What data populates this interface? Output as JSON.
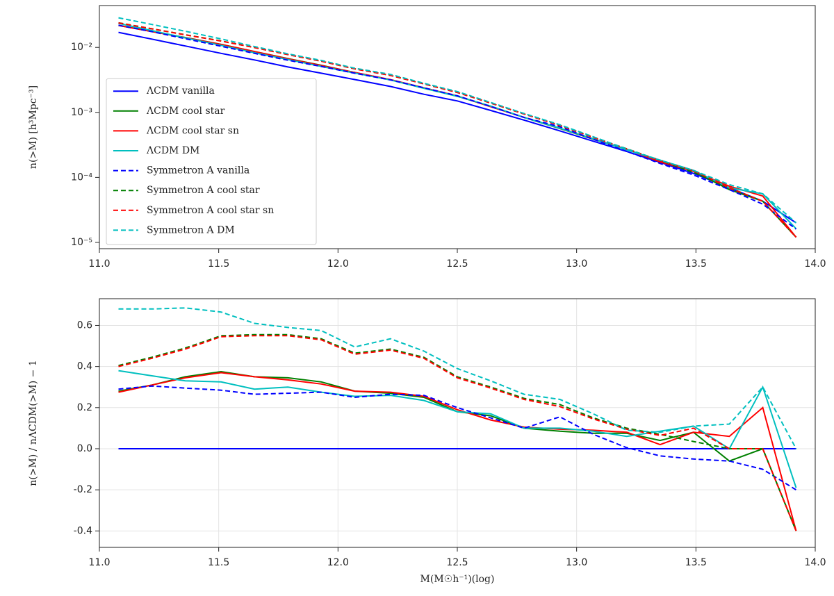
{
  "chart_data": [
    {
      "type": "line",
      "ylabel": "n(>M) [h³Mpc⁻³]",
      "ylog": true,
      "grid": false,
      "legend": "lower left",
      "x": [
        11.08,
        11.22,
        11.36,
        11.51,
        11.65,
        11.79,
        11.93,
        12.07,
        12.22,
        12.36,
        12.5,
        12.64,
        12.78,
        12.93,
        13.07,
        13.21,
        13.35,
        13.49,
        13.64,
        13.78,
        13.92
      ],
      "xlim": [
        11.0,
        14.0
      ],
      "xticks": [
        {
          "value": 11,
          "label": "11.0"
        },
        {
          "value": 11.5,
          "label": "11.5"
        },
        {
          "value": 12,
          "label": "12.0"
        },
        {
          "value": 12.5,
          "label": "12.5"
        },
        {
          "value": 13,
          "label": "13.0"
        },
        {
          "value": 13.5,
          "label": "13.5"
        },
        {
          "value": 14,
          "label": "14.0"
        }
      ],
      "ylim": [
        8e-06,
        0.044
      ],
      "yticks": [
        {
          "value": 1e-05,
          "label": "10⁻⁵"
        },
        {
          "value": 0.0001,
          "label": "10⁻⁴"
        },
        {
          "value": 0.001,
          "label": "10⁻³"
        },
        {
          "value": 0.01,
          "label": "10⁻²"
        }
      ],
      "series": [
        {
          "name": "ΛCDM vanilla",
          "color": "#0000ff",
          "dash": "solid",
          "values": [
            0.017,
            0.0134,
            0.0105,
            0.0081,
            0.0064,
            0.005,
            0.004,
            0.0032,
            0.0025,
            0.0019,
            0.0015,
            0.00107,
            0.00076,
            0.00052,
            0.00036,
            0.00025,
            0.00017,
            0.000115,
            6.9e-05,
            4.3e-05,
            2e-05
          ]
        },
        {
          "name": "ΛCDM cool star",
          "color": "#008000",
          "dash": "solid",
          "values": [
            0.0218,
            0.01755,
            0.01418,
            0.01114,
            0.00864,
            0.00673,
            0.0053,
            0.0041,
            0.00318,
            0.00238,
            0.00177,
            0.00124,
            0.000836,
            0.000564,
            0.000387,
            0.000269,
            0.000177,
            0.000124,
            6.49e-05,
            4.3e-05,
            1.2e-05
          ]
        },
        {
          "name": "ΛCDM cool star sn",
          "color": "#ff0000",
          "dash": "solid",
          "values": [
            0.0217,
            0.01755,
            0.01412,
            0.0111,
            0.00864,
            0.00668,
            0.00526,
            0.0041,
            0.00319,
            0.00238,
            0.00179,
            0.00122,
            0.00084,
            0.000569,
            0.000392,
            0.00027,
            0.000173,
            0.000124,
            7.31e-05,
            5.16e-05,
            1.2e-05
          ]
        },
        {
          "name": "ΛCDM DM",
          "color": "#00bfbf",
          "dash": "solid",
          "values": [
            0.02346,
            0.01816,
            0.01397,
            0.01073,
            0.00826,
            0.0065,
            0.0051,
            0.00402,
            0.00315,
            0.00235,
            0.00177,
            0.00125,
            0.000836,
            0.000572,
            0.000391,
            0.000265,
            0.000184,
            0.000128,
            6.9e-05,
            5.59e-05,
            1.62e-05
          ]
        },
        {
          "name": "Symmetron A vanilla",
          "color": "#0000ff",
          "dash": "dashed",
          "values": [
            0.02193,
            0.01749,
            0.0136,
            0.01041,
            0.0081,
            0.00635,
            0.0051,
            0.004,
            0.00316,
            0.00239,
            0.0018,
            0.00123,
            0.000836,
            0.000601,
            0.000385,
            0.000251,
            0.000164,
            0.000109,
            6.49e-05,
            3.87e-05,
            1.6e-05
          ]
        },
        {
          "name": "Symmetron A cool star",
          "color": "#008000",
          "dash": "dashed",
          "values": [
            0.02389,
            0.01936,
            0.01565,
            0.01256,
            0.00995,
            0.00778,
            0.00614,
            0.00469,
            0.00371,
            0.00275,
            0.00203,
            0.00139,
            0.000946,
            0.000632,
            0.000414,
            0.000275,
            0.000182,
            0.000119,
            6.9e-05,
            4.3e-05,
            1.2e-05
          ]
        },
        {
          "name": "Symmetron A cool star sn",
          "color": "#ff0000",
          "dash": "dashed",
          "values": [
            0.0238,
            0.0193,
            0.01559,
            0.01251,
            0.00992,
            0.00775,
            0.00612,
            0.00467,
            0.0037,
            0.00274,
            0.00202,
            0.00139,
            0.000942,
            0.000627,
            0.000412,
            0.000274,
            0.000181,
            0.000127,
            6.9e-05,
            4.3e-05,
            1.2e-05
          ]
        },
        {
          "name": "Symmetron A DM",
          "color": "#00bfbf",
          "dash": "dashed",
          "values": [
            0.02856,
            0.02251,
            0.01769,
            0.01349,
            0.0103,
            0.00795,
            0.0063,
            0.00478,
            0.00384,
            0.0028,
            0.00209,
            0.00142,
            0.000961,
            0.000645,
            0.000421,
            0.000273,
            0.000184,
            0.000128,
            7.73e-05,
            5.59e-05,
            2e-05
          ]
        }
      ]
    },
    {
      "type": "line",
      "xlabel": "M(M☉h⁻¹)(log)",
      "ylabel": "n(>M) / nΛCDM(>M) − 1",
      "ylog": false,
      "grid": true,
      "x": [
        11.08,
        11.22,
        11.36,
        11.51,
        11.65,
        11.79,
        11.93,
        12.07,
        12.22,
        12.36,
        12.5,
        12.64,
        12.78,
        12.93,
        13.07,
        13.21,
        13.35,
        13.49,
        13.64,
        13.78,
        13.92
      ],
      "xlim": [
        11.0,
        14.0
      ],
      "xticks": [
        {
          "value": 11,
          "label": "11.0"
        },
        {
          "value": 11.5,
          "label": "11.5"
        },
        {
          "value": 12,
          "label": "12.0"
        },
        {
          "value": 12.5,
          "label": "12.5"
        },
        {
          "value": 13,
          "label": "13.0"
        },
        {
          "value": 13.5,
          "label": "13.5"
        },
        {
          "value": 14,
          "label": "14.0"
        }
      ],
      "ylim": [
        -0.48,
        0.73
      ],
      "yticks": [
        -0.4,
        -0.2,
        {
          "value": 0,
          "label": "0.0"
        },
        0.2,
        0.4,
        0.6
      ],
      "series": [
        {
          "color": "#0000ff",
          "dash": "solid",
          "values": [
            0,
            0,
            0,
            0,
            0,
            0,
            0,
            0,
            0,
            0,
            0,
            0,
            0,
            0,
            0,
            0,
            0,
            0,
            0,
            0,
            0
          ]
        },
        {
          "color": "#008000",
          "dash": "solid",
          "values": [
            0.28,
            0.31,
            0.35,
            0.375,
            0.35,
            0.345,
            0.325,
            0.28,
            0.27,
            0.25,
            0.18,
            0.16,
            0.1,
            0.085,
            0.075,
            0.075,
            0.04,
            0.08,
            -0.06,
            0.0,
            -0.4
          ]
        },
        {
          "color": "#ff0000",
          "dash": "solid",
          "values": [
            0.275,
            0.31,
            0.345,
            0.37,
            0.35,
            0.335,
            0.315,
            0.28,
            0.275,
            0.255,
            0.19,
            0.14,
            0.105,
            0.095,
            0.09,
            0.08,
            0.02,
            0.08,
            0.06,
            0.2,
            -0.4
          ]
        },
        {
          "color": "#00bfbf",
          "dash": "solid",
          "values": [
            0.38,
            0.355,
            0.33,
            0.325,
            0.29,
            0.3,
            0.275,
            0.255,
            0.26,
            0.235,
            0.18,
            0.17,
            0.1,
            0.1,
            0.085,
            0.06,
            0.085,
            0.11,
            0.0,
            0.3,
            -0.19
          ]
        },
        {
          "color": "#0000ff",
          "dash": "dashed",
          "values": [
            0.29,
            0.305,
            0.295,
            0.285,
            0.265,
            0.27,
            0.275,
            0.25,
            0.265,
            0.26,
            0.2,
            0.15,
            0.1,
            0.155,
            0.07,
            0.005,
            -0.035,
            -0.05,
            -0.06,
            -0.1,
            -0.2
          ]
        },
        {
          "color": "#008000",
          "dash": "dashed",
          "values": [
            0.405,
            0.445,
            0.49,
            0.55,
            0.555,
            0.555,
            0.535,
            0.465,
            0.485,
            0.445,
            0.35,
            0.3,
            0.245,
            0.215,
            0.15,
            0.1,
            0.07,
            0.035,
            0.0,
            0.0,
            -0.4
          ]
        },
        {
          "color": "#ff0000",
          "dash": "dashed",
          "values": [
            0.4,
            0.44,
            0.485,
            0.545,
            0.55,
            0.55,
            0.53,
            0.46,
            0.48,
            0.44,
            0.345,
            0.295,
            0.24,
            0.205,
            0.145,
            0.095,
            0.065,
            0.1,
            0.0,
            0.0,
            -0.4
          ]
        },
        {
          "color": "#00bfbf",
          "dash": "dashed",
          "values": [
            0.68,
            0.68,
            0.685,
            0.665,
            0.61,
            0.59,
            0.575,
            0.495,
            0.535,
            0.475,
            0.39,
            0.33,
            0.265,
            0.24,
            0.17,
            0.09,
            0.08,
            0.11,
            0.12,
            0.3,
            0.0
          ]
        }
      ]
    }
  ]
}
